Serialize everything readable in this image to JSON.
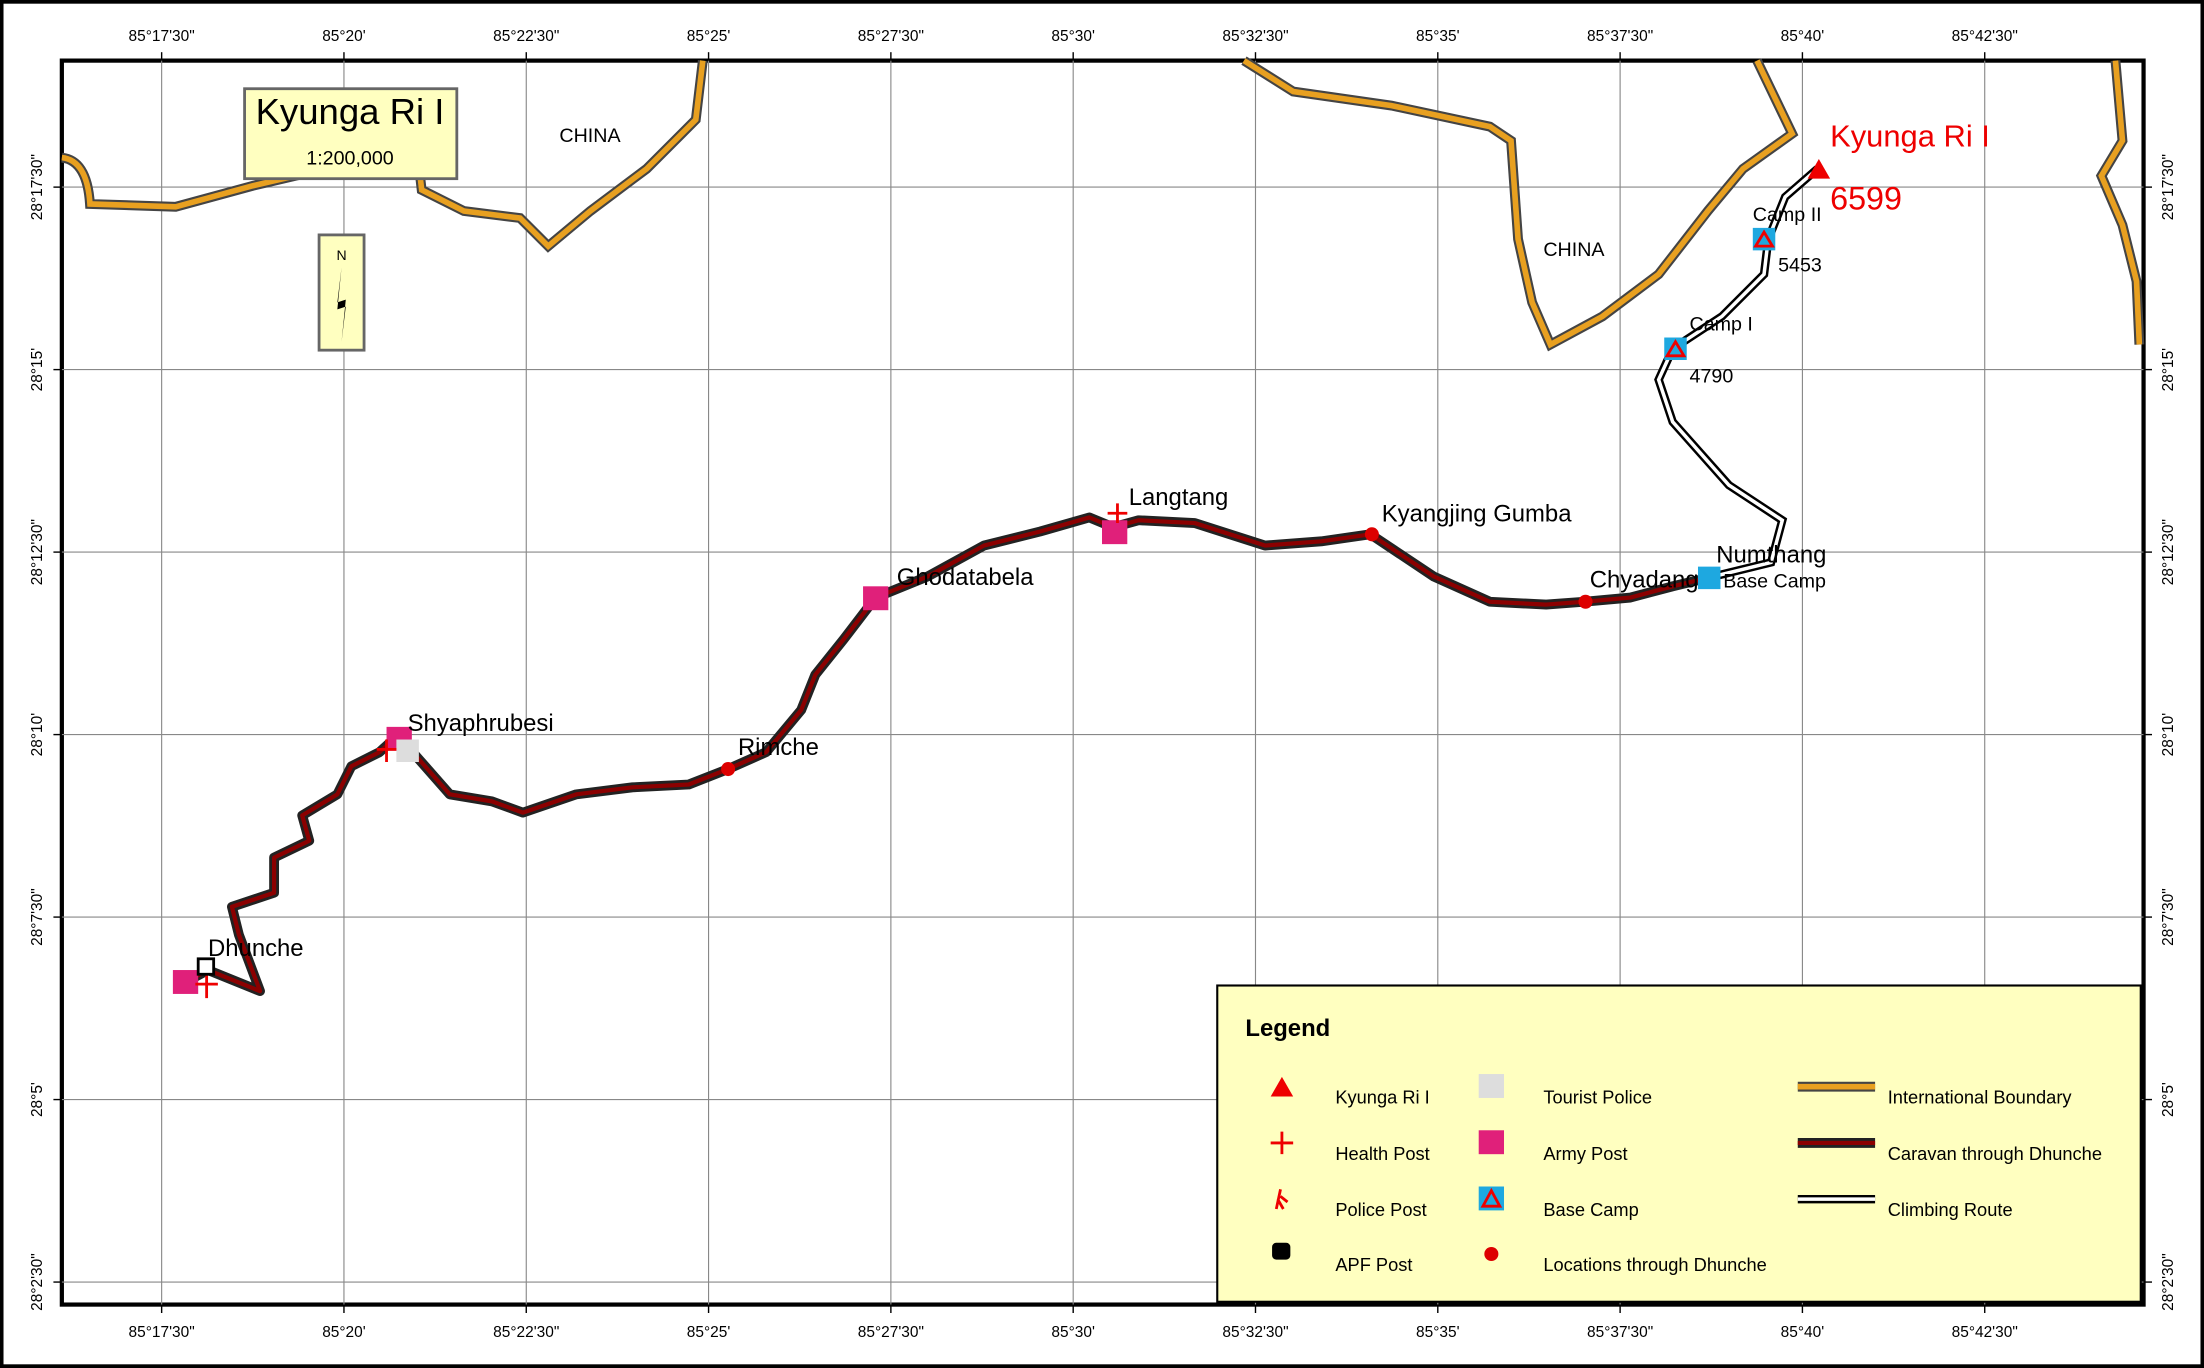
{
  "title": {
    "name": "Kyunga Ri I",
    "scale": "1:200,000"
  },
  "compass": "N",
  "x_labels": [
    "85°17'30\"",
    "85°20'",
    "85°22'30\"",
    "85°25'",
    "85°27'30\"",
    "85°30'",
    "85°32'30\"",
    "85°35'",
    "85°37'30\"",
    "85°40'",
    "85°42'30\""
  ],
  "y_labels": [
    "28°17'30\"",
    "28°15'",
    "28°12'30\"",
    "28°10'",
    "28°7'30\"",
    "28°5'",
    "28°2'30\""
  ],
  "regions": [
    "CHINA",
    "CHINA"
  ],
  "places": [
    "Kyunga Ri I",
    "Camp II",
    "Camp I",
    "Langtang",
    "Kyangjing Gumba",
    "Ghodatabela",
    "Numthang",
    "Base Camp",
    "Chyadang",
    "Shyaphrubesi",
    "Rimche",
    "Dhunche"
  ],
  "elevations": [
    6599,
    5453,
    4790
  ],
  "legend": {
    "title": "Legend",
    "items": [
      "Kyunga Ri I",
      "Health Post",
      "Police Post",
      "APF Post",
      "Tourist Police",
      "Army Post",
      "Base Camp",
      "Locations through Dhunche",
      "International Boundary",
      "Caravan through Dhunche",
      "Climbing Route"
    ]
  }
}
